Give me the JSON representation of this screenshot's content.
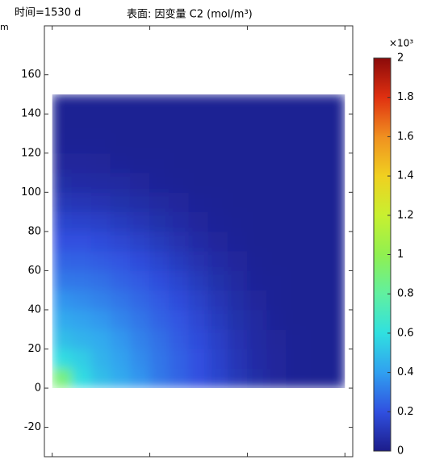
{
  "chart_data": {
    "type": "surface",
    "title": "表面: 因变量 C2 (mol/m³)",
    "subtitle": "时间=1530 d",
    "ylabel": "m",
    "xlim": [
      -4,
      154
    ],
    "ylim": [
      -35,
      185
    ],
    "xticks": [
      0,
      50,
      100,
      150
    ],
    "yticks": [
      -20,
      0,
      20,
      40,
      60,
      80,
      100,
      120,
      140,
      160
    ],
    "x": [
      5,
      15,
      25,
      35,
      45,
      55,
      65,
      75,
      85,
      95,
      105,
      115,
      125,
      135,
      145
    ],
    "y": [
      5,
      15,
      25,
      35,
      45,
      55,
      65,
      75,
      85,
      95,
      105,
      115,
      125,
      135,
      145
    ],
    "z": [
      [
        0.9,
        0.59,
        0.495,
        0.43,
        0.37,
        0.3,
        0.25,
        0.2,
        0.155,
        0.105,
        0.065,
        0.04,
        0.025,
        0.02,
        0.02
      ],
      [
        0.59,
        0.54,
        0.46,
        0.41,
        0.35,
        0.295,
        0.245,
        0.2,
        0.15,
        0.1,
        0.06,
        0.04,
        0.025,
        0.02,
        0.02
      ],
      [
        0.495,
        0.46,
        0.43,
        0.38,
        0.325,
        0.28,
        0.23,
        0.185,
        0.14,
        0.09,
        0.055,
        0.035,
        0.025,
        0.02,
        0.02
      ],
      [
        0.43,
        0.41,
        0.38,
        0.335,
        0.295,
        0.25,
        0.21,
        0.165,
        0.12,
        0.075,
        0.05,
        0.03,
        0.02,
        0.02,
        0.02
      ],
      [
        0.37,
        0.35,
        0.325,
        0.295,
        0.26,
        0.225,
        0.185,
        0.145,
        0.1,
        0.065,
        0.04,
        0.025,
        0.02,
        0.02,
        0.02
      ],
      [
        0.3,
        0.295,
        0.28,
        0.25,
        0.225,
        0.19,
        0.155,
        0.115,
        0.075,
        0.05,
        0.03,
        0.025,
        0.02,
        0.02,
        0.02
      ],
      [
        0.25,
        0.245,
        0.23,
        0.21,
        0.185,
        0.155,
        0.12,
        0.085,
        0.06,
        0.04,
        0.025,
        0.02,
        0.02,
        0.02,
        0.02
      ],
      [
        0.2,
        0.2,
        0.185,
        0.165,
        0.145,
        0.115,
        0.085,
        0.06,
        0.04,
        0.03,
        0.02,
        0.02,
        0.02,
        0.02,
        0.02
      ],
      [
        0.155,
        0.15,
        0.14,
        0.12,
        0.1,
        0.075,
        0.06,
        0.04,
        0.03,
        0.025,
        0.02,
        0.02,
        0.02,
        0.02,
        0.02
      ],
      [
        0.105,
        0.1,
        0.09,
        0.075,
        0.065,
        0.05,
        0.04,
        0.03,
        0.025,
        0.02,
        0.02,
        0.02,
        0.02,
        0.02,
        0.02
      ],
      [
        0.065,
        0.06,
        0.055,
        0.05,
        0.04,
        0.03,
        0.025,
        0.02,
        0.02,
        0.02,
        0.02,
        0.02,
        0.02,
        0.02,
        0.02
      ],
      [
        0.04,
        0.04,
        0.035,
        0.03,
        0.025,
        0.025,
        0.02,
        0.02,
        0.02,
        0.02,
        0.02,
        0.02,
        0.02,
        0.02,
        0.02
      ],
      [
        0.025,
        0.025,
        0.025,
        0.02,
        0.02,
        0.02,
        0.02,
        0.02,
        0.02,
        0.02,
        0.02,
        0.02,
        0.02,
        0.02,
        0.02
      ],
      [
        0.02,
        0.02,
        0.02,
        0.02,
        0.02,
        0.02,
        0.02,
        0.02,
        0.02,
        0.02,
        0.02,
        0.02,
        0.02,
        0.02,
        0.02
      ],
      [
        0.02,
        0.02,
        0.02,
        0.02,
        0.02,
        0.02,
        0.02,
        0.02,
        0.02,
        0.02,
        0.02,
        0.02,
        0.02,
        0.02,
        0.02
      ]
    ],
    "colorbar_label": "×10³",
    "clim": [
      0,
      2
    ],
    "cticks": [
      0,
      0.2,
      0.4,
      0.6,
      0.8,
      1,
      1.2,
      1.4,
      1.6,
      1.8,
      2
    ],
    "colormap": [
      "#1c1c8a",
      "#3050e0",
      "#30a0f0",
      "#30e0e0",
      "#60f0a0",
      "#90f050",
      "#c8f030",
      "#f0d020",
      "#f09020",
      "#e03010",
      "#8b0a0a"
    ]
  }
}
